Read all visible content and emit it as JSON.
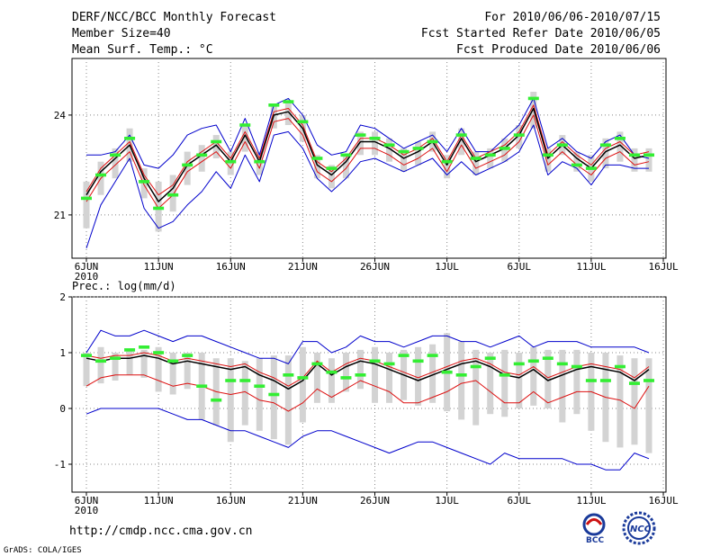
{
  "header": {
    "title": "DERF/NCC/BCC Monthly Forecast",
    "member_size": "Member Size=40",
    "variable": "Mean Surf. Temp.: °C",
    "period": "For 2010/06/06-2010/07/15",
    "refer_date": "Fcst Started Refer Date 2010/06/05",
    "produced_date": "Fcst Produced Date 2010/06/06"
  },
  "footer": {
    "url": "http://cmdp.ncc.cma.gov.cn",
    "credit": "GrADS: COLA/IGES",
    "logo_bcc": "BCC",
    "logo_ncc": "NCC"
  },
  "colors": {
    "ensemble_box": "#d3d3d3",
    "observation": "#33ee33",
    "spread": "#0000cc",
    "percentile": "#dd1111",
    "mean": "#000000",
    "grid": "#888888"
  },
  "chart_data": [
    {
      "type": "line",
      "title": "Mean Surf. Temp.: °C",
      "x_tick_labels": [
        "6JUN",
        "11JUN",
        "16JUN",
        "21JUN",
        "26JUN",
        "1JUL",
        "6JUL",
        "11JUL",
        "16JUL"
      ],
      "x_year_label": "2010",
      "y_ticks": [
        21,
        24
      ],
      "ylim": [
        19.7,
        25.7
      ],
      "days": 40,
      "series": [
        {
          "name": "max",
          "values": [
            22.8,
            22.8,
            22.9,
            23.4,
            22.5,
            22.4,
            22.8,
            23.4,
            23.6,
            23.7,
            22.9,
            23.9,
            22.8,
            24.3,
            24.5,
            24.0,
            23.1,
            22.8,
            22.9,
            23.7,
            23.6,
            23.3,
            23.0,
            23.2,
            23.4,
            22.9,
            23.6,
            22.9,
            22.9,
            23.3,
            23.7,
            24.5,
            23.0,
            23.3,
            22.9,
            22.7,
            23.2,
            23.4,
            22.8,
            22.7
          ]
        },
        {
          "name": "mean",
          "values": [
            21.6,
            22.3,
            22.7,
            23.1,
            22.1,
            21.4,
            21.8,
            22.5,
            22.8,
            23.1,
            22.6,
            23.4,
            22.6,
            24.0,
            24.1,
            23.6,
            22.5,
            22.2,
            22.6,
            23.2,
            23.2,
            23.0,
            22.7,
            22.9,
            23.2,
            22.5,
            23.3,
            22.6,
            22.8,
            23.0,
            23.4,
            24.2,
            22.7,
            23.1,
            22.7,
            22.4,
            22.9,
            23.1,
            22.7,
            22.8
          ]
        },
        {
          "name": "min",
          "values": [
            20.0,
            21.3,
            22.0,
            22.7,
            21.2,
            20.6,
            20.8,
            21.3,
            21.7,
            22.3,
            21.8,
            22.8,
            22.0,
            23.4,
            23.5,
            23.0,
            22.1,
            21.7,
            22.1,
            22.6,
            22.7,
            22.5,
            22.3,
            22.5,
            22.7,
            22.2,
            22.6,
            22.2,
            22.4,
            22.6,
            22.9,
            23.7,
            22.2,
            22.6,
            22.4,
            21.9,
            22.5,
            22.5,
            22.4,
            22.4
          ]
        },
        {
          "name": "upper",
          "values": [
            21.7,
            22.4,
            22.8,
            23.2,
            22.2,
            21.6,
            21.9,
            22.6,
            22.9,
            23.2,
            22.7,
            23.5,
            22.7,
            24.1,
            24.2,
            23.7,
            22.6,
            22.3,
            22.7,
            23.3,
            23.3,
            23.1,
            22.8,
            23.0,
            23.3,
            22.6,
            23.4,
            22.7,
            22.9,
            23.1,
            23.5,
            24.3,
            22.8,
            23.2,
            22.8,
            22.5,
            23.0,
            23.2,
            22.8,
            22.9
          ]
        },
        {
          "name": "lower",
          "values": [
            21.4,
            22.1,
            22.5,
            22.9,
            21.9,
            21.2,
            21.6,
            22.3,
            22.6,
            22.9,
            22.4,
            23.2,
            22.4,
            23.8,
            23.9,
            23.4,
            22.3,
            22.0,
            22.4,
            23.0,
            23.0,
            22.8,
            22.5,
            22.7,
            23.0,
            22.3,
            23.1,
            22.4,
            22.6,
            22.8,
            23.2,
            24.0,
            22.5,
            22.9,
            22.5,
            22.2,
            22.7,
            22.9,
            22.5,
            22.6
          ]
        },
        {
          "name": "observation",
          "values": [
            21.5,
            22.2,
            22.8,
            23.3,
            22.0,
            21.2,
            21.6,
            22.5,
            22.8,
            23.2,
            22.6,
            23.7,
            22.6,
            24.3,
            24.4,
            23.8,
            22.7,
            22.4,
            22.8,
            23.4,
            23.3,
            23.1,
            22.9,
            23.0,
            23.2,
            22.6,
            23.4,
            22.7,
            22.8,
            23.0,
            23.4,
            24.5,
            22.8,
            23.1,
            22.5,
            22.4,
            23.1,
            23.3,
            22.8,
            22.8
          ]
        },
        {
          "name": "box_high",
          "values": [
            22.0,
            22.6,
            23.0,
            23.6,
            22.4,
            22.0,
            22.2,
            22.9,
            23.1,
            23.4,
            22.9,
            23.7,
            22.9,
            24.3,
            24.4,
            24.0,
            22.8,
            22.5,
            22.8,
            23.5,
            23.5,
            23.3,
            23.0,
            23.2,
            23.5,
            22.8,
            23.6,
            22.9,
            23.0,
            23.3,
            23.7,
            24.7,
            23.0,
            23.4,
            22.9,
            22.8,
            23.3,
            23.5,
            23.0,
            23.0
          ]
        },
        {
          "name": "box_low",
          "values": [
            20.6,
            21.6,
            22.1,
            22.6,
            21.5,
            20.5,
            21.1,
            21.9,
            22.3,
            22.7,
            22.2,
            22.9,
            22.2,
            23.6,
            23.7,
            23.2,
            22.1,
            21.8,
            22.1,
            22.8,
            22.8,
            22.6,
            22.3,
            22.5,
            22.9,
            22.1,
            22.8,
            22.2,
            22.4,
            22.6,
            23.0,
            23.6,
            22.3,
            22.8,
            22.3,
            22.0,
            22.4,
            22.6,
            22.3,
            22.3
          ]
        }
      ]
    },
    {
      "type": "line",
      "title": "Prec.: log(mm/d)",
      "x_tick_labels": [
        "6JUN",
        "11JUN",
        "16JUN",
        "21JUN",
        "26JUN",
        "1JUL",
        "6JUL",
        "11JUL",
        "16JUL"
      ],
      "x_year_label": "2010",
      "y_ticks": [
        -1,
        0,
        1,
        2
      ],
      "ylim": [
        -1.5,
        2.0
      ],
      "days": 40,
      "series": [
        {
          "name": "max",
          "values": [
            1.0,
            1.4,
            1.3,
            1.3,
            1.4,
            1.3,
            1.2,
            1.3,
            1.3,
            1.2,
            1.1,
            1.0,
            0.9,
            0.9,
            0.8,
            1.2,
            1.2,
            1.0,
            1.1,
            1.3,
            1.2,
            1.2,
            1.1,
            1.2,
            1.3,
            1.3,
            1.2,
            1.2,
            1.1,
            1.2,
            1.3,
            1.1,
            1.2,
            1.2,
            1.2,
            1.1,
            1.1,
            1.1,
            1.1,
            1.0
          ]
        },
        {
          "name": "mean",
          "values": [
            0.9,
            0.85,
            0.9,
            0.9,
            0.95,
            0.9,
            0.8,
            0.85,
            0.8,
            0.75,
            0.7,
            0.75,
            0.6,
            0.5,
            0.35,
            0.5,
            0.8,
            0.6,
            0.75,
            0.85,
            0.8,
            0.7,
            0.6,
            0.5,
            0.6,
            0.7,
            0.8,
            0.85,
            0.75,
            0.6,
            0.55,
            0.7,
            0.5,
            0.6,
            0.7,
            0.75,
            0.7,
            0.65,
            0.5,
            0.7
          ]
        },
        {
          "name": "min",
          "values": [
            -0.1,
            0.0,
            0.0,
            0.0,
            0.0,
            0.0,
            -0.1,
            -0.2,
            -0.2,
            -0.3,
            -0.4,
            -0.4,
            -0.5,
            -0.6,
            -0.7,
            -0.5,
            -0.4,
            -0.4,
            -0.5,
            -0.6,
            -0.7,
            -0.8,
            -0.7,
            -0.6,
            -0.6,
            -0.7,
            -0.8,
            -0.9,
            -1.0,
            -0.8,
            -0.9,
            -0.9,
            -0.9,
            -0.9,
            -1.0,
            -1.0,
            -1.1,
            -1.1,
            -0.8,
            -0.9
          ]
        },
        {
          "name": "upper",
          "values": [
            0.95,
            0.9,
            0.95,
            0.95,
            1.0,
            0.95,
            0.85,
            0.9,
            0.85,
            0.8,
            0.75,
            0.8,
            0.65,
            0.55,
            0.4,
            0.55,
            0.85,
            0.65,
            0.8,
            0.9,
            0.85,
            0.75,
            0.65,
            0.55,
            0.65,
            0.75,
            0.85,
            0.9,
            0.8,
            0.65,
            0.6,
            0.75,
            0.55,
            0.65,
            0.75,
            0.8,
            0.75,
            0.7,
            0.55,
            0.75
          ]
        },
        {
          "name": "lower",
          "values": [
            0.4,
            0.55,
            0.6,
            0.6,
            0.6,
            0.5,
            0.4,
            0.45,
            0.4,
            0.3,
            0.25,
            0.3,
            0.15,
            0.1,
            -0.05,
            0.1,
            0.35,
            0.2,
            0.35,
            0.5,
            0.4,
            0.3,
            0.1,
            0.1,
            0.2,
            0.3,
            0.45,
            0.5,
            0.3,
            0.1,
            0.1,
            0.3,
            0.1,
            0.2,
            0.3,
            0.3,
            0.2,
            0.15,
            0.0,
            0.4
          ]
        },
        {
          "name": "observation",
          "values": [
            0.95,
            0.85,
            0.9,
            1.05,
            1.1,
            1.0,
            0.85,
            0.95,
            0.4,
            0.15,
            0.5,
            0.5,
            0.4,
            0.25,
            0.6,
            0.55,
            0.8,
            0.65,
            0.55,
            0.6,
            0.85,
            0.8,
            0.95,
            0.85,
            0.95,
            0.65,
            0.6,
            0.75,
            0.9,
            0.6,
            0.8,
            0.85,
            0.9,
            0.8,
            0.75,
            0.5,
            0.5,
            0.75,
            0.45,
            0.5
          ]
        },
        {
          "name": "box_high",
          "values": [
            1.0,
            1.1,
            1.0,
            1.05,
            1.05,
            1.1,
            1.0,
            1.0,
            1.0,
            0.9,
            0.9,
            0.85,
            0.9,
            0.95,
            0.95,
            1.1,
            1.0,
            0.9,
            1.0,
            1.05,
            1.1,
            1.0,
            1.05,
            1.1,
            1.15,
            1.35,
            1.2,
            1.05,
            1.0,
            1.05,
            1.0,
            1.1,
            1.05,
            1.05,
            1.05,
            1.0,
            1.0,
            0.95,
            0.9,
            0.9
          ]
        },
        {
          "name": "box_low",
          "values": [
            0.4,
            0.45,
            0.5,
            0.6,
            0.55,
            0.3,
            0.25,
            0.35,
            -0.2,
            -0.3,
            -0.6,
            -0.3,
            -0.4,
            -0.55,
            -0.65,
            -0.25,
            0.1,
            0.1,
            0.3,
            0.35,
            0.1,
            0.1,
            0.15,
            0.05,
            0.1,
            -0.05,
            -0.2,
            -0.3,
            -0.1,
            -0.15,
            0.0,
            0.05,
            0.0,
            -0.25,
            -0.1,
            -0.4,
            -0.6,
            -0.7,
            -0.65,
            -0.8
          ]
        }
      ]
    }
  ]
}
